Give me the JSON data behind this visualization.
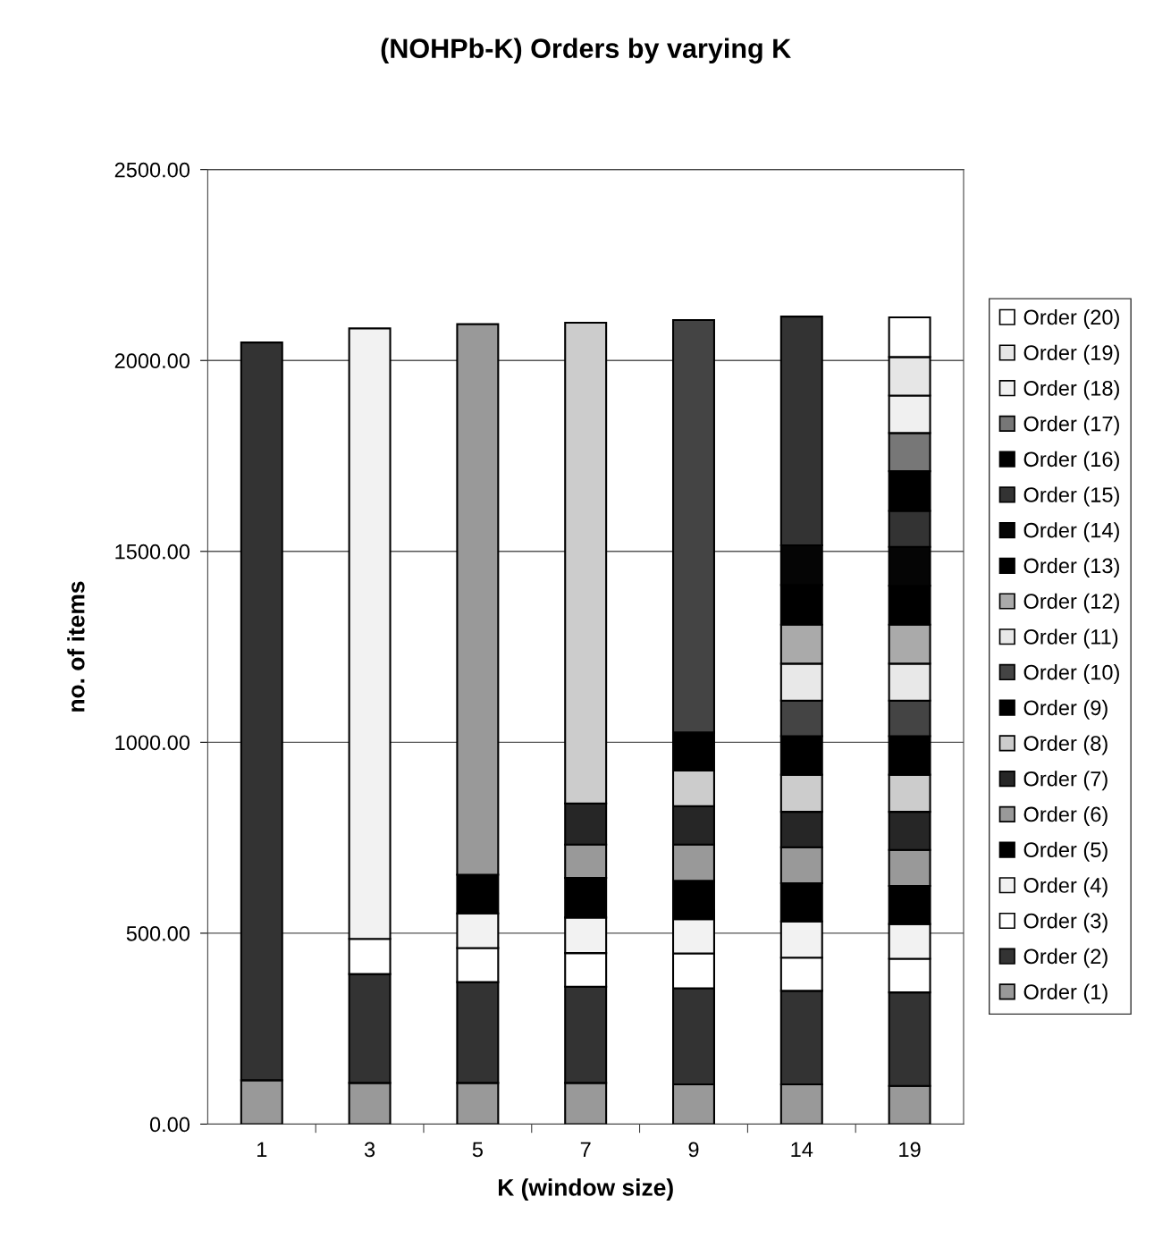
{
  "chart_data": {
    "type": "bar",
    "stacked": true,
    "title": "(NOHPb-K) Orders by varying K",
    "xlabel": "K (window size)",
    "ylabel": "no. of items",
    "categories": [
      "1",
      "3",
      "5",
      "7",
      "9",
      "14",
      "19"
    ],
    "ylim": [
      0,
      2500
    ],
    "yticks": [
      {
        "value": 0,
        "label": "0.00"
      },
      {
        "value": 500,
        "label": "500.00"
      },
      {
        "value": 1000,
        "label": "1000.00"
      },
      {
        "value": 1500,
        "label": "1500.00"
      },
      {
        "value": 2000,
        "label": "2000.00"
      },
      {
        "value": 2500,
        "label": "2500.00"
      }
    ],
    "grid": "y",
    "legend": "right",
    "series": [
      {
        "name": "Order (1)",
        "color": "#999999",
        "values": [
          115,
          108,
          108,
          108,
          104,
          104,
          100
        ]
      },
      {
        "name": "Order (2)",
        "color": "#333333",
        "values": [
          1932,
          285,
          264,
          252,
          252,
          245,
          245
        ]
      },
      {
        "name": "Order (3)",
        "color": "#ffffff",
        "values": [
          null,
          92,
          89,
          88,
          91,
          87,
          88
        ]
      },
      {
        "name": "Order (4)",
        "color": "#f2f2f2",
        "values": [
          null,
          1599,
          91,
          93,
          90,
          95,
          91
        ]
      },
      {
        "name": "Order (5)",
        "color": "#000000",
        "values": [
          null,
          null,
          101,
          104,
          100,
          100,
          100
        ]
      },
      {
        "name": "Order (6)",
        "color": "#999999",
        "values": [
          null,
          null,
          1442,
          87,
          95,
          94,
          94
        ]
      },
      {
        "name": "Order (7)",
        "color": "#262626",
        "values": [
          null,
          null,
          null,
          108,
          101,
          93,
          100
        ]
      },
      {
        "name": "Order (8)",
        "color": "#cccccc",
        "values": [
          null,
          null,
          null,
          1259,
          93,
          97,
          97
        ]
      },
      {
        "name": "Order (9)",
        "color": "#000000",
        "values": [
          null,
          null,
          null,
          null,
          100,
          101,
          101
        ]
      },
      {
        "name": "Order (10)",
        "color": "#444444",
        "values": [
          null,
          null,
          null,
          null,
          1080,
          93,
          93
        ]
      },
      {
        "name": "Order (11)",
        "color": "#e8e8e8",
        "values": [
          null,
          null,
          null,
          null,
          null,
          97,
          97
        ]
      },
      {
        "name": "Order (12)",
        "color": "#aaaaaa",
        "values": [
          null,
          null,
          null,
          null,
          null,
          102,
          102
        ]
      },
      {
        "name": "Order (13)",
        "color": "#000000",
        "values": [
          null,
          null,
          null,
          null,
          null,
          104,
          102
        ]
      },
      {
        "name": "Order (14)",
        "color": "#050505",
        "values": [
          null,
          null,
          null,
          null,
          null,
          104,
          102
        ]
      },
      {
        "name": "Order (15)",
        "color": "#333333",
        "values": [
          null,
          null,
          null,
          null,
          null,
          599,
          94
        ]
      },
      {
        "name": "Order (16)",
        "color": "#000000",
        "values": [
          null,
          null,
          null,
          null,
          null,
          null,
          104
        ]
      },
      {
        "name": "Order (17)",
        "color": "#777777",
        "values": [
          null,
          null,
          null,
          null,
          null,
          null,
          100
        ]
      },
      {
        "name": "Order (18)",
        "color": "#f0f0f0",
        "values": [
          null,
          null,
          null,
          null,
          null,
          null,
          98
        ]
      },
      {
        "name": "Order (19)",
        "color": "#e6e6e6",
        "values": [
          null,
          null,
          null,
          null,
          null,
          null,
          101
        ]
      },
      {
        "name": "Order (20)",
        "color": "#ffffff",
        "values": [
          null,
          null,
          null,
          null,
          null,
          null,
          104
        ]
      }
    ]
  }
}
